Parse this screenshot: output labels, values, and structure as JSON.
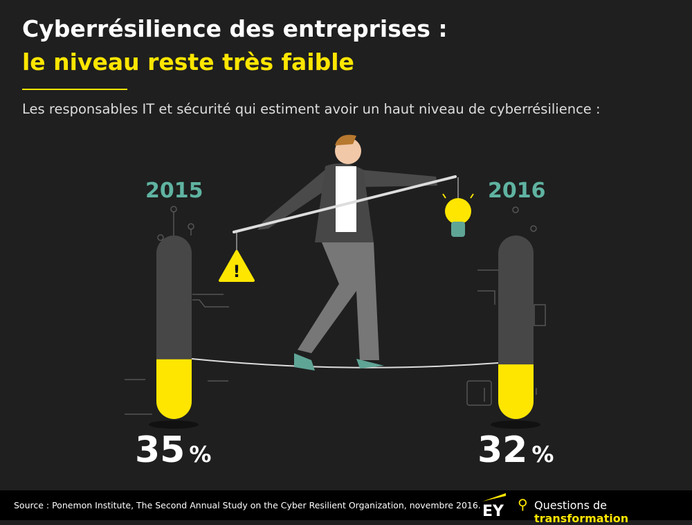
{
  "title_line1": "Cyberrésilience des entreprises :",
  "title_line2": "le niveau reste très faible",
  "subtitle": "Les responsables IT et sécurité qui estiment avoir un haut niveau de cyberrésilience :",
  "chart_data": {
    "type": "bar",
    "categories": [
      "2015",
      "2016"
    ],
    "values": [
      35,
      32
    ],
    "unit": "%",
    "ylim": [
      0,
      100
    ],
    "value_labels": [
      "35",
      "32"
    ],
    "colors": {
      "fill": "#ffe600",
      "track": "#474747",
      "year": "#5fb3a1"
    }
  },
  "footer": {
    "source": "Source : Ponemon Institute, The Second Annual Study on the Cyber Resilient Organization, novembre 2016.",
    "logo": "EY",
    "brand_prefix": "Questions de",
    "brand_emph": "transformation"
  }
}
